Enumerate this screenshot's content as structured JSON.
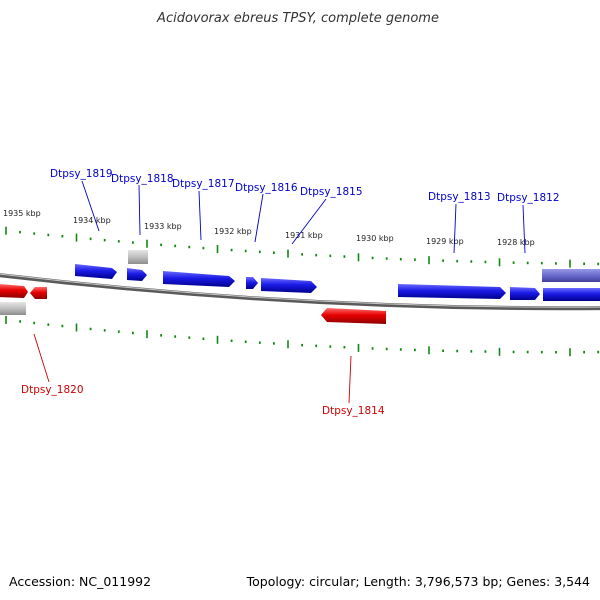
{
  "title": "Acidovorax ebreus TPSY, complete genome",
  "footer": {
    "accession": "Accession: NC_011992",
    "summary": "Topology: circular; Length: 3,796,573 bp; Genes: 3,544"
  },
  "colors": {
    "forward_gene": "#1a1ae0",
    "reverse_gene": "#e00000",
    "other_feature": "#b3b3b3",
    "highlight_feature": "#6666cc",
    "backbone": "#808080",
    "ticks": "#118811"
  },
  "scale_labels": [
    "1935 kbp",
    "1934 kbp",
    "1933 kbp",
    "1932 kbp",
    "1931 kbp",
    "1930 kbp",
    "1929 kbp",
    "1928 kbp"
  ],
  "genes": [
    {
      "id": "Dtpsy_1819",
      "strand": "forward"
    },
    {
      "id": "Dtpsy_1818",
      "strand": "forward"
    },
    {
      "id": "Dtpsy_1817",
      "strand": "forward"
    },
    {
      "id": "Dtpsy_1816",
      "strand": "forward"
    },
    {
      "id": "Dtpsy_1815",
      "strand": "forward"
    },
    {
      "id": "Dtpsy_1813",
      "strand": "forward"
    },
    {
      "id": "Dtpsy_1812",
      "strand": "forward"
    },
    {
      "id": "Dtpsy_1820",
      "strand": "reverse"
    },
    {
      "id": "Dtpsy_1814",
      "strand": "reverse"
    }
  ]
}
